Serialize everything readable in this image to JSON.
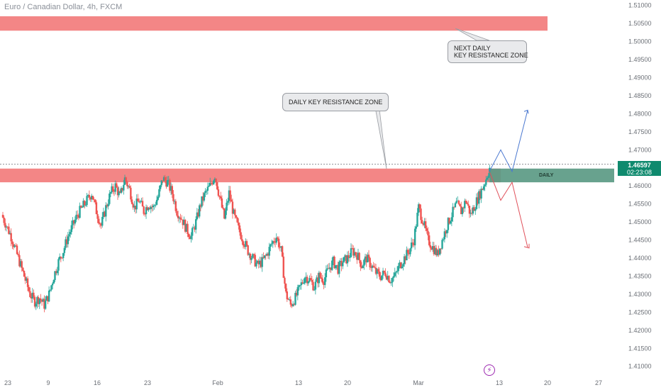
{
  "symbol": {
    "title": "Euro / Canadian Dollar, 4h, FXCM"
  },
  "annotations": {
    "next_zone": [
      "NEXT DAILY",
      "KEY RESISTANCE ZONE"
    ],
    "daily_zone": "DAILY KEY RESISTANCE ZONE",
    "daily_label": "DAILY"
  },
  "last_price": {
    "price": "1.46597",
    "countdown": "02:23:08"
  },
  "colors": {
    "bull": "#26a69a",
    "bear": "#ef5350",
    "zone": "#f28080",
    "projection_up": "#4a78d0",
    "projection_down": "#e0505a",
    "price_tag": "#0f8a6e"
  },
  "icons": {
    "alert": "lightning-icon"
  },
  "chart_data": {
    "type": "candlestick",
    "title": "Euro / Canadian Dollar, 4h, FXCM",
    "xlabel": "",
    "ylabel": "",
    "ylim": [
      1.407,
      1.5115
    ],
    "y_ticks": [
      "1.51000",
      "1.50500",
      "1.50000",
      "1.49500",
      "1.49000",
      "1.48500",
      "1.48000",
      "1.47500",
      "1.47000",
      "1.46500",
      "1.46000",
      "1.45500",
      "1.45000",
      "1.44500",
      "1.44000",
      "1.43500",
      "1.43000",
      "1.42500",
      "1.42000",
      "1.41500",
      "1.41000"
    ],
    "x_ticks": [
      "23",
      "9",
      "16",
      "23",
      "Feb",
      "13",
      "20",
      "Mar",
      "13",
      "20",
      "27"
    ],
    "close_series": [
      1.452,
      1.449,
      1.446,
      1.442,
      1.438,
      1.434,
      1.43,
      1.428,
      1.429,
      1.427,
      1.43,
      1.435,
      1.439,
      1.442,
      1.446,
      1.449,
      1.452,
      1.454,
      1.456,
      1.458,
      1.453,
      1.449,
      1.454,
      1.458,
      1.46,
      1.457,
      1.462,
      1.459,
      1.454,
      1.456,
      1.453,
      1.455,
      1.454,
      1.457,
      1.462,
      1.461,
      1.458,
      1.453,
      1.451,
      1.448,
      1.446,
      1.45,
      1.455,
      1.458,
      1.46,
      1.463,
      1.457,
      1.451,
      1.458,
      1.452,
      1.448,
      1.445,
      1.442,
      1.44,
      1.438,
      1.439,
      1.441,
      1.444,
      1.446,
      1.442,
      1.43,
      1.427,
      1.429,
      1.432,
      1.435,
      1.434,
      1.432,
      1.435,
      1.434,
      1.437,
      1.439,
      1.437,
      1.439,
      1.44,
      1.442,
      1.441,
      1.438,
      1.44,
      1.438,
      1.436,
      1.435,
      1.436,
      1.434,
      1.435,
      1.438,
      1.44,
      1.442,
      1.445,
      1.454,
      1.45,
      1.445,
      1.443,
      1.441,
      1.445,
      1.449,
      1.452,
      1.455,
      1.453,
      1.456,
      1.452,
      1.455,
      1.458,
      1.461,
      1.465
    ],
    "horizontal_line": 1.466,
    "zones": [
      {
        "name": "NEXT DAILY KEY RESISTANCE ZONE",
        "from": 1.503,
        "to": 1.507
      },
      {
        "name": "DAILY KEY RESISTANCE ZONE",
        "from": 1.461,
        "to": 1.4648
      }
    ],
    "projection_up": [
      [
        0,
        1.464
      ],
      [
        1,
        1.47
      ],
      [
        2,
        1.464
      ],
      [
        3,
        1.481
      ]
    ],
    "projection_down": [
      [
        0,
        1.464
      ],
      [
        1,
        1.456
      ],
      [
        2,
        1.461
      ],
      [
        3,
        1.443
      ]
    ]
  }
}
